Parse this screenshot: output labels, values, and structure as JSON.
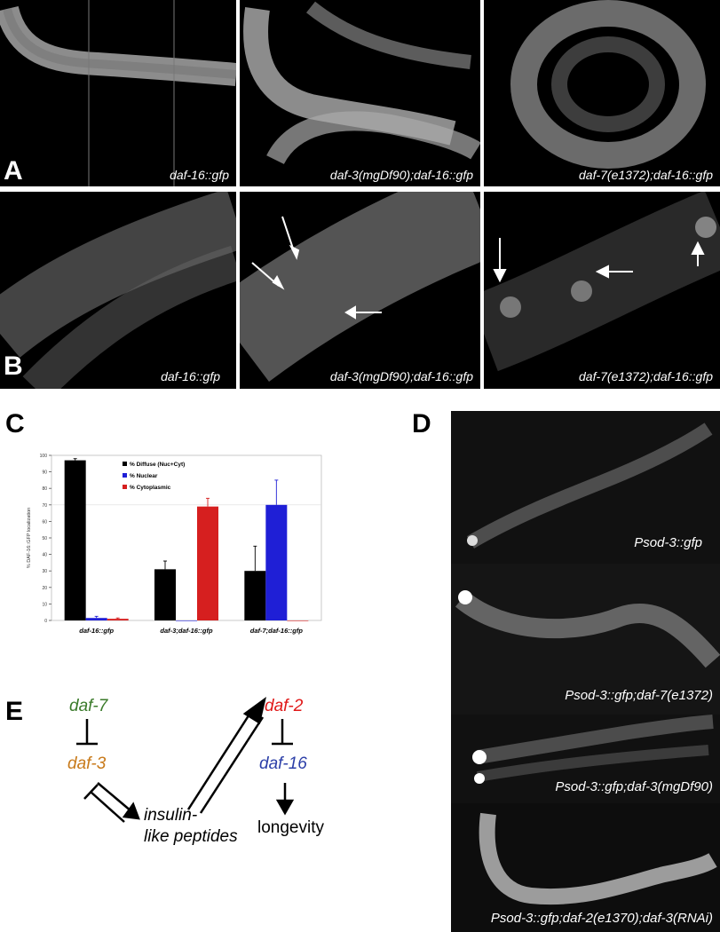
{
  "panel_labels": {
    "A": "A",
    "B": "B",
    "C": "C",
    "D": "D",
    "E": "E"
  },
  "row_a_captions": [
    "daf-16::gfp",
    "daf-3(mgDf90);daf-16::gfp",
    "daf-7(e1372);daf-16::gfp"
  ],
  "row_b_captions": [
    "daf-16::gfp",
    "daf-3(mgDf90);daf-16::gfp",
    "daf-7(e1372);daf-16::gfp"
  ],
  "panel_d_captions": [
    "Psod-3::gfp",
    "Psod-3::gfp;daf-7(e1372)",
    "Psod-3::gfp;daf-3(mgDf90)",
    "Psod-3::gfp;daf-2(e1370);daf-3(RNAi)"
  ],
  "pathway": {
    "daf7": "daf-7",
    "daf3": "daf-3",
    "insulin_line1": "insulin-",
    "insulin_line2": "like peptides",
    "daf2": "daf-2",
    "daf16": "daf-16",
    "longevity": "longevity",
    "colors": {
      "daf7": "#3a7a2a",
      "daf3": "#c87a1a",
      "daf2": "#e01818",
      "daf16": "#2c3fa8",
      "text": "#000000"
    }
  },
  "chart_data": {
    "type": "bar",
    "ylabel": "% DAF-16::GFP localization",
    "ylim": [
      0,
      100
    ],
    "yticks": [
      0,
      10,
      20,
      30,
      40,
      50,
      60,
      70,
      80,
      90,
      100
    ],
    "categories": [
      "daf-16::gfp",
      "daf-3;daf-16::gfp",
      "daf-7;daf-16::gfp"
    ],
    "series": [
      {
        "name": "% Diffuse (Nuc+Cyt)",
        "color": "#000000",
        "values": [
          97,
          31,
          30
        ],
        "errors": [
          1,
          5,
          15
        ]
      },
      {
        "name": "% Nuclear",
        "color": "#1f1fd6",
        "values": [
          1.5,
          0,
          70
        ],
        "errors": [
          1,
          0,
          15
        ]
      },
      {
        "name": "% Cytoplasmic",
        "color": "#d61f1f",
        "values": [
          1,
          69,
          0
        ],
        "errors": [
          0.5,
          5,
          0
        ]
      }
    ],
    "legend_position": "top"
  }
}
